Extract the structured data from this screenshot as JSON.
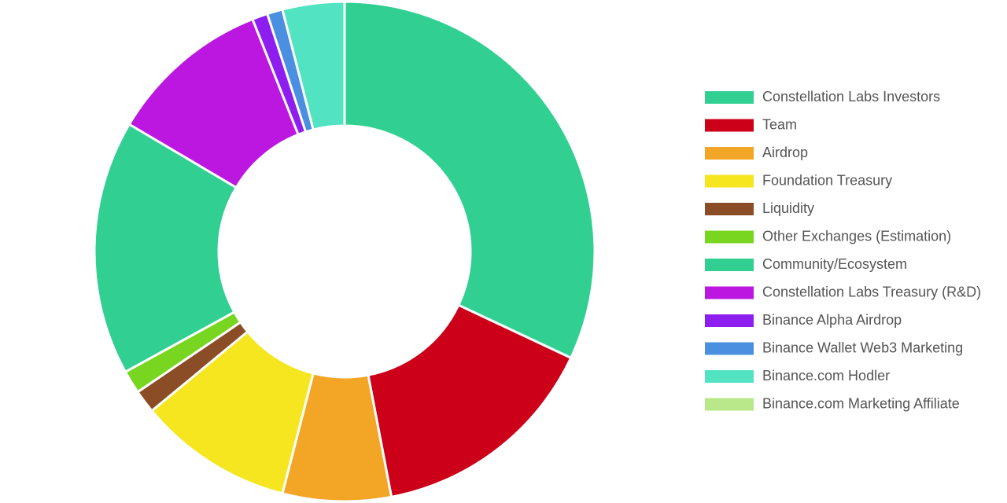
{
  "chart_data": {
    "type": "donut",
    "series": [
      {
        "name": "Constellation Labs Investors",
        "color": "#31d092",
        "value": 32
      },
      {
        "name": "Team",
        "color": "#cc0018",
        "value": 15
      },
      {
        "name": "Airdrop",
        "color": "#f3a626",
        "value": 7
      },
      {
        "name": "Foundation Treasury",
        "color": "#f6e620",
        "value": 10
      },
      {
        "name": "Liquidity",
        "color": "#8b4d26",
        "value": 1.5
      },
      {
        "name": "Other Exchanges (Estimation)",
        "color": "#78d620",
        "value": 1.5
      },
      {
        "name": "Community/Ecosystem",
        "color": "#31d092",
        "value": 16.5
      },
      {
        "name": "Constellation Labs Treasury (R&D)",
        "color": "#bb17e0",
        "value": 10.5
      },
      {
        "name": "Binance Alpha Airdrop",
        "color": "#8e1ef0",
        "value": 1
      },
      {
        "name": "Binance Wallet Web3 Marketing",
        "color": "#4a8fe0",
        "value": 1
      },
      {
        "name": "Binance.com Hodler",
        "color": "#52e3c2",
        "value": 4
      },
      {
        "name": "Binance.com Marketing Affiliate",
        "color": "#b8e88a",
        "value": 0
      }
    ],
    "legend": "right"
  }
}
